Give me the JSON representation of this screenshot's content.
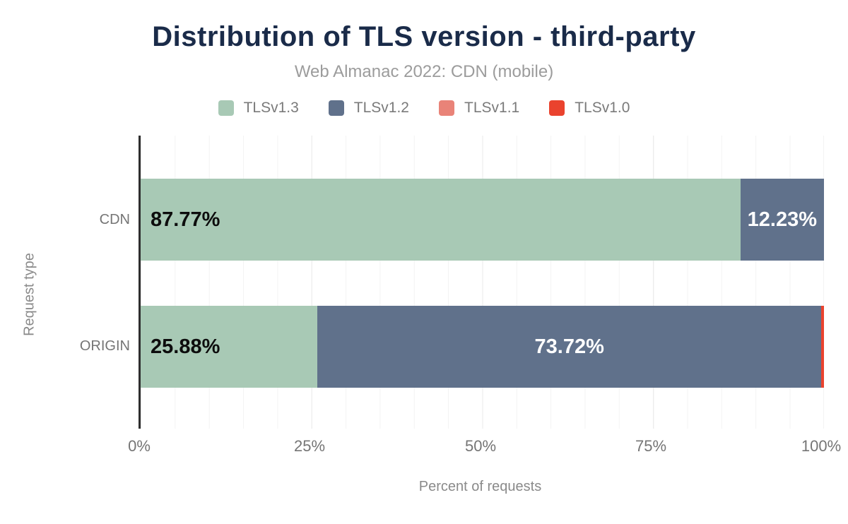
{
  "title": "Distribution of TLS version - third-party",
  "subtitle": "Web Almanac 2022: CDN (mobile)",
  "colors": {
    "title_navy": "#1a2b49",
    "subtitle_gray": "#9c9c9c",
    "axis_text_gray": "#757575",
    "axis_line": "#2e2e2e",
    "grid_minor": "#f3f3f3",
    "grid_major": "#e9e9e9",
    "tlsv13_green": "#a8c9b5",
    "tlsv12_slate": "#60718b",
    "tlsv11_salmon": "#e98378",
    "tlsv10_red": "#ea432e"
  },
  "legend": [
    {
      "label": "TLSv1.3",
      "color": "#a8c9b5"
    },
    {
      "label": "TLSv1.2",
      "color": "#60718b"
    },
    {
      "label": "TLSv1.1",
      "color": "#e98378"
    },
    {
      "label": "TLSv1.0",
      "color": "#ea432e"
    }
  ],
  "chart_data": {
    "type": "bar",
    "orientation": "horizontal",
    "stacked": true,
    "title": "Distribution of TLS version - third-party",
    "subtitle": "Web Almanac 2022: CDN (mobile)",
    "xlabel": "Percent of requests",
    "ylabel": "Request type",
    "xlim": [
      0,
      100
    ],
    "grid": "vertical, minor every 5%, major every 25%",
    "legend_position": "top center",
    "categories": [
      "CDN",
      "ORIGIN"
    ],
    "series": [
      {
        "name": "TLSv1.3",
        "color": "#a8c9b5",
        "values": [
          87.77,
          25.88
        ]
      },
      {
        "name": "TLSv1.2",
        "color": "#60718b",
        "values": [
          12.23,
          73.72
        ]
      },
      {
        "name": "TLSv1.1",
        "color": "#e98378",
        "values": [
          0,
          0
        ]
      },
      {
        "name": "TLSv1.0",
        "color": "#ea432e",
        "values": [
          0,
          0.4
        ]
      }
    ],
    "note": "ORIGIN row ends with a thin unlabeled red TLSv1.0 sliver (~0.4%, estimated as the remainder to 100%); no TLSv1.1 segment is visible.",
    "x_axis": {
      "ticks": [
        "0%",
        "25%",
        "50%",
        "75%",
        "100%"
      ],
      "title": "Percent of requests"
    },
    "y_axis": {
      "title": "Request type",
      "categories": [
        "CDN",
        "ORIGIN"
      ]
    },
    "rows": [
      {
        "category": "CDN",
        "segments": [
          {
            "series": "TLSv1.3",
            "value": 87.77,
            "label": "87.77%",
            "color": "#a8c9b5"
          },
          {
            "series": "TLSv1.2",
            "value": 12.23,
            "label": "12.23%",
            "color": "#60718b"
          },
          {
            "series": "TLSv1.1",
            "value": 0,
            "label": "",
            "color": "#e98378"
          },
          {
            "series": "TLSv1.0",
            "value": 0,
            "label": "",
            "color": "#ea432e"
          }
        ]
      },
      {
        "category": "ORIGIN",
        "segments": [
          {
            "series": "TLSv1.3",
            "value": 25.88,
            "label": "25.88%",
            "color": "#a8c9b5"
          },
          {
            "series": "TLSv1.2",
            "value": 73.72,
            "label": "73.72%",
            "color": "#60718b"
          },
          {
            "series": "TLSv1.1",
            "value": 0,
            "label": "",
            "color": "#e98378"
          },
          {
            "series": "TLSv1.0",
            "value": 0.4,
            "label": "",
            "color": "#ea432e"
          }
        ]
      }
    ]
  }
}
